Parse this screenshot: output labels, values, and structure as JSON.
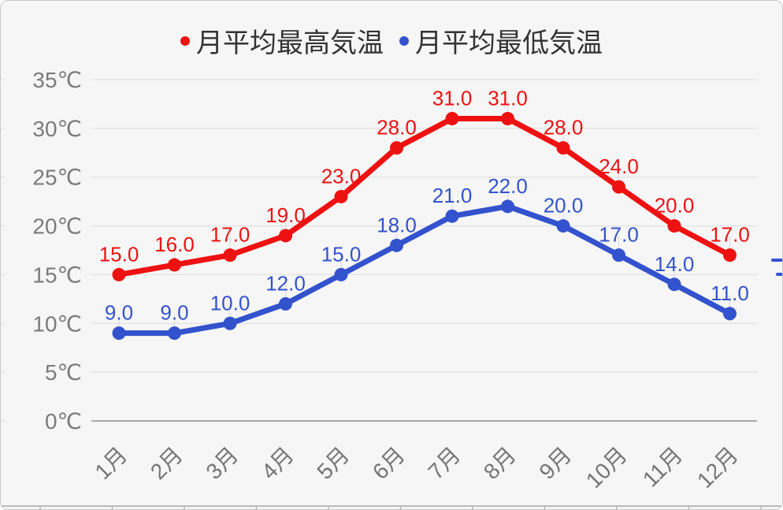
{
  "chart_data": {
    "type": "line",
    "title": "",
    "categories": [
      "1月",
      "2月",
      "3月",
      "4月",
      "5月",
      "6月",
      "7月",
      "8月",
      "9月",
      "10月",
      "11月",
      "12月"
    ],
    "series": [
      {
        "name": "月平均最高気温",
        "color": "#ee1111",
        "values": [
          15.0,
          16.0,
          17.0,
          19.0,
          23.0,
          28.0,
          31.0,
          31.0,
          28.0,
          24.0,
          20.0,
          17.0
        ],
        "point_labels": [
          "15.0",
          "16.0",
          "17.0",
          "19.0",
          "23.0",
          "28.0",
          "31.0",
          "31.0",
          "28.0",
          "24.0",
          "20.0",
          "17.0"
        ]
      },
      {
        "name": "月平均最低気温",
        "color": "#3352cd",
        "values": [
          9.0,
          9.0,
          10.0,
          12.0,
          15.0,
          18.0,
          21.0,
          22.0,
          20.0,
          17.0,
          14.0,
          11.0
        ],
        "point_labels": [
          "9.0",
          "9.0",
          "10.0",
          "12.0",
          "15.0",
          "18.0",
          "21.0",
          "22.0",
          "20.0",
          "17.0",
          "14.0",
          "11.0"
        ]
      }
    ],
    "y_axis": {
      "min": 0,
      "max": 35,
      "tick_step": 5,
      "unit": "℃",
      "tick_labels": [
        "0℃",
        "5℃",
        "10℃",
        "15℃",
        "20℃",
        "25℃",
        "30℃",
        "35℃"
      ]
    },
    "grid": "horizontal",
    "legend_position": "top"
  },
  "colors": {
    "background": "#f6f6f6",
    "border": "#c9c9c9",
    "grid": "#dcdcdc",
    "zero_line": "#8f8f8f",
    "axis_label": "#7b7b7b",
    "x_label": "#757575",
    "legend_text": "#333333",
    "label_leader": "#d9d9d9",
    "table_edge": "#a6a6a6",
    "table_tick": "#b3b3b3",
    "edge_fragment": "#3352cd"
  }
}
